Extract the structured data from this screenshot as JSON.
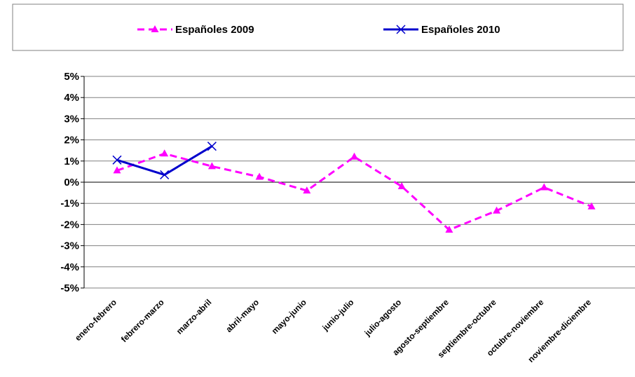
{
  "chart_data": {
    "type": "line",
    "categories": [
      "enero-febrero",
      "febrero-marzo",
      "marzo-abril",
      "abril-mayo",
      "mayo-junio",
      "junio-julio",
      "julio-agosto",
      "agosto-septiembre",
      "septiembre-octubre",
      "octubre-noviembre",
      "noviembre-diciembre"
    ],
    "series": [
      {
        "name": "Españoles 2009",
        "color": "#ff00ff",
        "marker": "triangle",
        "dash": "dashed",
        "values": [
          0.55,
          1.35,
          0.75,
          0.25,
          -0.4,
          1.2,
          -0.2,
          -2.25,
          -1.35,
          -0.25,
          -1.15
        ]
      },
      {
        "name": "Españoles 2010",
        "color": "#0000cc",
        "marker": "x",
        "dash": "solid",
        "values": [
          1.05,
          0.35,
          1.7,
          null,
          null,
          null,
          null,
          null,
          null,
          null,
          null
        ]
      }
    ],
    "y_ticks": [
      "5%",
      "4%",
      "3%",
      "2%",
      "1%",
      "0%",
      "-1%",
      "-2%",
      "-3%",
      "-4%",
      "-5%"
    ],
    "ylim": [
      -5,
      5
    ],
    "grid": true,
    "legend_position": "top"
  }
}
